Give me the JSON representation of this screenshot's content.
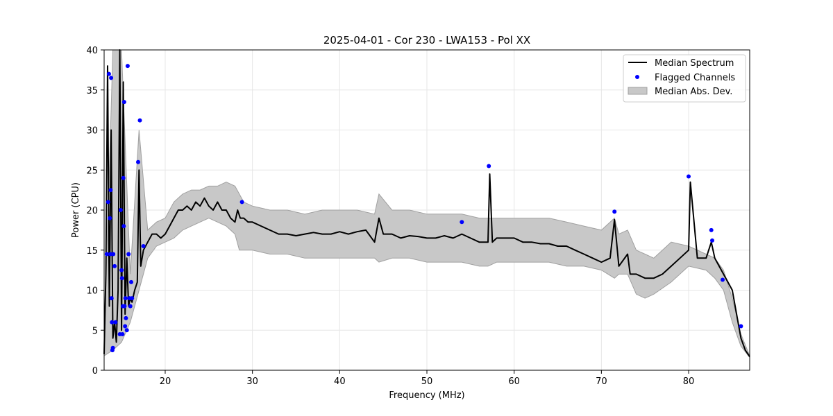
{
  "chart_data": {
    "type": "line",
    "title": "2025-04-01 - Cor 230 - LWA153 - Pol XX",
    "xlabel": "Frequency (MHz)",
    "ylabel": "Power (CPU)",
    "xlim": [
      13,
      87
    ],
    "ylim": [
      0,
      40
    ],
    "xticks": [
      20,
      30,
      40,
      50,
      60,
      70,
      80
    ],
    "yticks": [
      0,
      5,
      10,
      15,
      20,
      25,
      30,
      35,
      40
    ],
    "grid": true,
    "legend_position": "top-right",
    "legend": [
      "Median Spectrum",
      "Flagged Channels",
      "Median Abs. Dev."
    ],
    "colors": {
      "median": "#000000",
      "flagged": "#0000ff",
      "mad_fill": "#c8c8c8",
      "mad_edge": "#a0a0a0"
    },
    "series": [
      {
        "name": "Median Spectrum",
        "x": [
          13.0,
          13.2,
          13.4,
          13.6,
          13.8,
          14.0,
          14.2,
          14.4,
          14.6,
          14.8,
          15.0,
          15.2,
          15.4,
          15.6,
          15.8,
          16.0,
          16.2,
          16.5,
          16.8,
          17.0,
          17.2,
          17.5,
          18.0,
          18.5,
          19.0,
          19.5,
          20.0,
          20.5,
          21.0,
          21.5,
          22.0,
          22.5,
          23.0,
          23.5,
          24.0,
          24.5,
          25.0,
          25.5,
          26.0,
          26.5,
          27.0,
          27.5,
          28.0,
          28.3,
          28.6,
          29.0,
          29.5,
          30.0,
          31.0,
          32.0,
          33.0,
          34.0,
          35.0,
          36.0,
          37.0,
          38.0,
          39.0,
          40.0,
          41.0,
          42.0,
          43.0,
          44.0,
          44.5,
          45.0,
          46.0,
          47.0,
          48.0,
          49.0,
          50.0,
          51.0,
          52.0,
          53.0,
          54.0,
          55.0,
          56.0,
          57.0,
          57.2,
          57.5,
          58.0,
          59.0,
          60.0,
          61.0,
          62.0,
          63.0,
          64.0,
          65.0,
          66.0,
          67.0,
          68.0,
          69.0,
          70.0,
          71.0,
          71.5,
          72.0,
          73.0,
          73.3,
          74.0,
          75.0,
          76.0,
          77.0,
          78.0,
          79.0,
          80.0,
          80.2,
          81.0,
          82.0,
          82.6,
          83.0,
          83.5,
          84.0,
          84.5,
          85.0,
          85.5,
          86.0,
          86.5,
          87.0
        ],
        "y": [
          2.0,
          12.0,
          38.0,
          8.0,
          30.0,
          4.0,
          6.0,
          3.5,
          10.0,
          40.0,
          5.0,
          36.0,
          7.0,
          14.0,
          8.0,
          9.0,
          8.5,
          10.0,
          11.0,
          25.0,
          13.0,
          15.0,
          16.0,
          17.0,
          17.0,
          16.5,
          17.0,
          18.0,
          19.0,
          20.0,
          20.0,
          20.5,
          20.0,
          21.0,
          20.5,
          21.5,
          20.5,
          20.0,
          21.0,
          20.0,
          20.0,
          19.0,
          18.5,
          20.0,
          19.0,
          19.0,
          18.5,
          18.5,
          18.0,
          17.5,
          17.0,
          17.0,
          16.8,
          17.0,
          17.2,
          17.0,
          17.0,
          17.3,
          17.0,
          17.3,
          17.5,
          16.0,
          19.0,
          17.0,
          17.0,
          16.5,
          16.8,
          16.7,
          16.5,
          16.5,
          16.8,
          16.5,
          17.0,
          16.5,
          16.0,
          16.0,
          24.5,
          16.0,
          16.5,
          16.5,
          16.5,
          16.0,
          16.0,
          15.8,
          15.8,
          15.5,
          15.5,
          15.0,
          14.5,
          14.0,
          13.5,
          14.0,
          18.8,
          13.0,
          14.5,
          12.0,
          12.0,
          11.5,
          11.5,
          12.0,
          13.0,
          14.0,
          15.0,
          23.5,
          14.0,
          14.0,
          16.0,
          14.0,
          13.0,
          12.0,
          11.0,
          10.0,
          7.0,
          4.0,
          2.5,
          1.7
        ]
      },
      {
        "name": "Flagged Channels",
        "x": [
          13.3,
          13.45,
          13.55,
          13.65,
          13.7,
          13.75,
          13.8,
          13.85,
          13.9,
          13.95,
          14.0,
          14.05,
          14.2,
          14.3,
          14.8,
          14.9,
          15.0,
          15.05,
          15.1,
          15.15,
          15.2,
          15.25,
          15.3,
          15.35,
          15.4,
          15.45,
          15.5,
          15.6,
          15.7,
          15.8,
          15.9,
          16.0,
          16.1,
          16.2,
          16.9,
          17.1,
          17.5,
          28.8,
          54.0,
          57.1,
          71.5,
          80.0,
          82.6,
          82.7,
          83.9,
          86.0
        ],
        "y": [
          14.5,
          21.0,
          37.0,
          19.0,
          14.5,
          22.5,
          36.5,
          9.0,
          6.0,
          2.5,
          2.8,
          14.5,
          13.0,
          6.0,
          4.5,
          20.0,
          12.5,
          11.5,
          4.5,
          8.0,
          24.0,
          18.0,
          33.5,
          8.0,
          5.5,
          9.0,
          6.5,
          5.0,
          38.0,
          14.5,
          9.0,
          8.0,
          11.0,
          9.0,
          26.0,
          31.2,
          15.5,
          21.0,
          18.5,
          25.5,
          19.8,
          24.2,
          17.5,
          16.2,
          11.3,
          5.5
        ]
      },
      {
        "name": "Median Abs. Dev.",
        "x": [
          13.0,
          14.0,
          15.0,
          16.0,
          17.0,
          18.0,
          19.0,
          20.0,
          21.0,
          22.0,
          23.0,
          24.0,
          25.0,
          26.0,
          27.0,
          28.0,
          28.5,
          29.0,
          30.0,
          32.0,
          34.0,
          36.0,
          38.0,
          40.0,
          42.0,
          44.0,
          44.5,
          46.0,
          48.0,
          50.0,
          52.0,
          54.0,
          56.0,
          57.0,
          58.0,
          60.0,
          62.0,
          64.0,
          66.0,
          68.0,
          70.0,
          71.5,
          72.0,
          73.0,
          74.0,
          75.0,
          76.0,
          78.0,
          80.0,
          82.0,
          83.0,
          84.0,
          85.0,
          86.0,
          87.0
        ],
        "upper": [
          3.0,
          40.0,
          40.0,
          12.0,
          30.0,
          17.5,
          18.5,
          19.0,
          21.0,
          22.0,
          22.5,
          22.5,
          23.0,
          23.0,
          23.5,
          23.0,
          22.0,
          21.0,
          20.5,
          20.0,
          20.0,
          19.5,
          20.0,
          20.0,
          20.0,
          19.5,
          22.0,
          20.0,
          20.0,
          19.5,
          19.5,
          19.5,
          19.0,
          19.0,
          19.0,
          19.0,
          19.0,
          19.0,
          18.5,
          18.0,
          17.5,
          19.0,
          17.0,
          17.5,
          15.0,
          14.5,
          14.0,
          16.0,
          15.5,
          14.5,
          14.0,
          12.5,
          9.0,
          4.5,
          1.8
        ],
        "lower": [
          1.8,
          2.5,
          3.5,
          6.0,
          10.0,
          14.0,
          15.5,
          16.0,
          16.5,
          17.5,
          18.0,
          18.5,
          19.0,
          18.5,
          18.0,
          17.0,
          15.0,
          15.0,
          15.0,
          14.5,
          14.5,
          14.0,
          14.0,
          14.0,
          14.0,
          14.0,
          13.5,
          14.0,
          14.0,
          13.5,
          13.5,
          13.5,
          13.0,
          13.0,
          13.5,
          13.5,
          13.5,
          13.5,
          13.0,
          13.0,
          12.5,
          11.5,
          12.0,
          12.0,
          9.5,
          9.0,
          9.5,
          11.0,
          13.0,
          12.5,
          11.5,
          10.0,
          6.0,
          3.0,
          1.6
        ]
      }
    ]
  }
}
